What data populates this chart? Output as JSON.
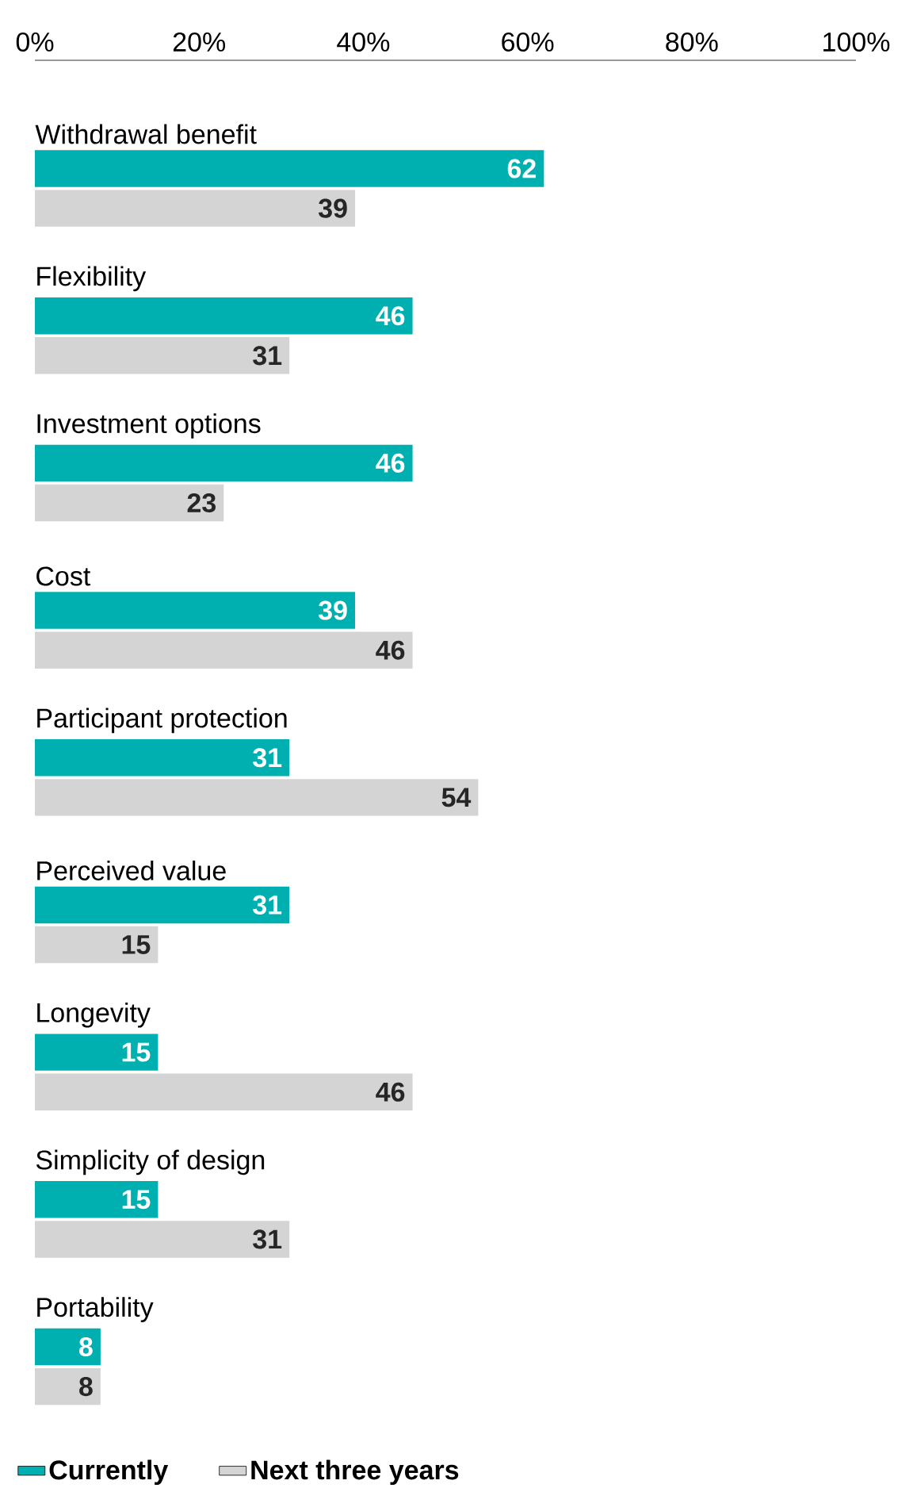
{
  "chart_data": {
    "type": "bar",
    "orientation": "horizontal",
    "categories": [
      "Withdrawal benefit",
      "Flexibility",
      "Investment options",
      "Cost",
      "Participant protection",
      "Perceived value",
      "Longevity",
      "Simplicity of design",
      "Portability"
    ],
    "series": [
      {
        "name": "Currently",
        "color": "#00b0b0",
        "values": [
          62,
          46,
          46,
          39,
          31,
          31,
          15,
          15,
          8
        ]
      },
      {
        "name": "Next three years",
        "color": "#d4d4d4",
        "values": [
          39,
          31,
          23,
          46,
          54,
          15,
          46,
          31,
          8
        ]
      }
    ],
    "xlim": [
      0,
      100
    ],
    "xticks": [
      {
        "value": 0,
        "label": "0%"
      },
      {
        "value": 20,
        "label": "20%"
      },
      {
        "value": 40,
        "label": "40%"
      },
      {
        "value": 60,
        "label": "60%"
      },
      {
        "value": 80,
        "label": "80%"
      },
      {
        "value": 100,
        "label": "100%"
      }
    ],
    "data_labels": true,
    "legend": "bottom left",
    "grid": false
  }
}
